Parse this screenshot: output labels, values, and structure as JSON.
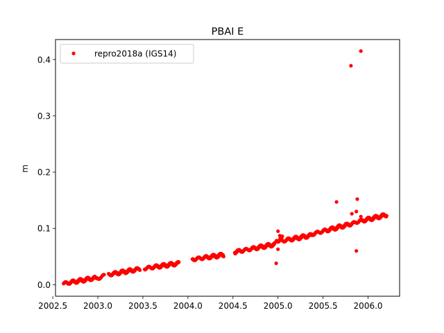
{
  "chart_data": {
    "type": "scatter",
    "title": "PBAI E",
    "xlabel": "",
    "ylabel": "m",
    "xlim": [
      2002.53,
      2006.35
    ],
    "ylim": [
      -0.0205,
      0.4355
    ],
    "x_ticks": [
      "2002.5",
      "2003.0",
      "2003.5",
      "2004.0",
      "2004.5",
      "2005.0",
      "2005.5",
      "2006.0"
    ],
    "y_ticks": [
      "0.0",
      "0.1",
      "0.2",
      "0.3",
      "0.4"
    ],
    "grid": false,
    "legend_position": "top-left",
    "series": [
      {
        "name": "repro2018a (IGS14)",
        "color": "#ff0000",
        "marker": "circle",
        "segments": [
          {
            "x_start": 2002.62,
            "x_end": 2002.97,
            "y_start": 0.002,
            "y_end": 0.012,
            "step": 0.0055
          },
          {
            "x_start": 2002.98,
            "x_end": 2003.07,
            "y_start": 0.01,
            "y_end": 0.016,
            "step": 0.006
          },
          {
            "x_start": 2003.12,
            "x_end": 2003.47,
            "y_start": 0.018,
            "y_end": 0.028,
            "step": 0.0055
          },
          {
            "x_start": 2003.52,
            "x_end": 2003.9,
            "y_start": 0.029,
            "y_end": 0.038,
            "step": 0.0055
          },
          {
            "x_start": 2004.05,
            "x_end": 2004.4,
            "y_start": 0.045,
            "y_end": 0.053,
            "step": 0.0055
          },
          {
            "x_start": 2004.52,
            "x_end": 2004.97,
            "y_start": 0.058,
            "y_end": 0.072,
            "step": 0.0055
          },
          {
            "x_start": 2004.98,
            "x_end": 2005.05,
            "y_start": 0.075,
            "y_end": 0.085,
            "step": 0.004
          },
          {
            "x_start": 2005.05,
            "x_end": 2005.38,
            "y_start": 0.078,
            "y_end": 0.088,
            "step": 0.0055
          },
          {
            "x_start": 2005.38,
            "x_end": 2005.86,
            "y_start": 0.09,
            "y_end": 0.11,
            "step": 0.0055
          },
          {
            "x_start": 2005.86,
            "x_end": 2006.21,
            "y_start": 0.111,
            "y_end": 0.124,
            "step": 0.0055
          }
        ],
        "points": [
          {
            "x": 2005.81,
            "y": 0.389
          },
          {
            "x": 2005.92,
            "y": 0.415
          },
          {
            "x": 2005.65,
            "y": 0.147
          },
          {
            "x": 2005.88,
            "y": 0.152
          },
          {
            "x": 2005.87,
            "y": 0.13
          },
          {
            "x": 2005.82,
            "y": 0.126
          },
          {
            "x": 2005.92,
            "y": 0.121
          },
          {
            "x": 2005.87,
            "y": 0.06
          },
          {
            "x": 2004.98,
            "y": 0.038
          },
          {
            "x": 2005.0,
            "y": 0.095
          },
          {
            "x": 2005.0,
            "y": 0.063
          },
          {
            "x": 2005.02,
            "y": 0.087
          },
          {
            "x": 2005.04,
            "y": 0.083
          }
        ]
      }
    ]
  }
}
